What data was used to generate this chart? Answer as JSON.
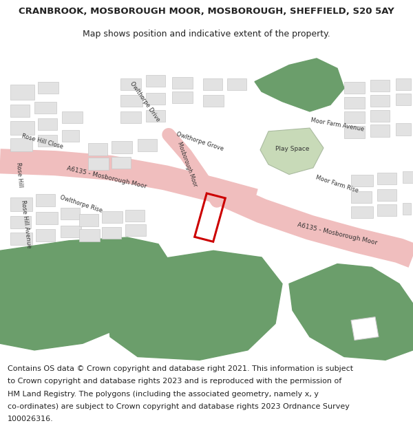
{
  "title_line1": "CRANBROOK, MOSBOROUGH MOOR, MOSBOROUGH, SHEFFIELD, S20 5AY",
  "title_line2": "Map shows position and indicative extent of the property.",
  "footer_text": "Contains OS data © Crown copyright and database right 2021. This information is subject to Crown copyright and database rights 2023 and is reproduced with the permission of HM Land Registry. The polygons (including the associated geometry, namely x, y co-ordinates) are subject to Crown copyright and database rights 2023 Ordnance Survey 100026316.",
  "title_fontsize": 9.5,
  "subtitle_fontsize": 9,
  "footer_fontsize": 8,
  "bg_color": "#ffffff",
  "map_bg": "#f2f2f2",
  "road_pink": "#f0bebe",
  "green_color": "#6b9e6b",
  "green_light": "#c8dab8",
  "building_color": "#e2e2e2",
  "building_edge": "#c8c8c8",
  "red_outline": "#cc0000",
  "text_color": "#222222",
  "road_text_color": "#333333"
}
